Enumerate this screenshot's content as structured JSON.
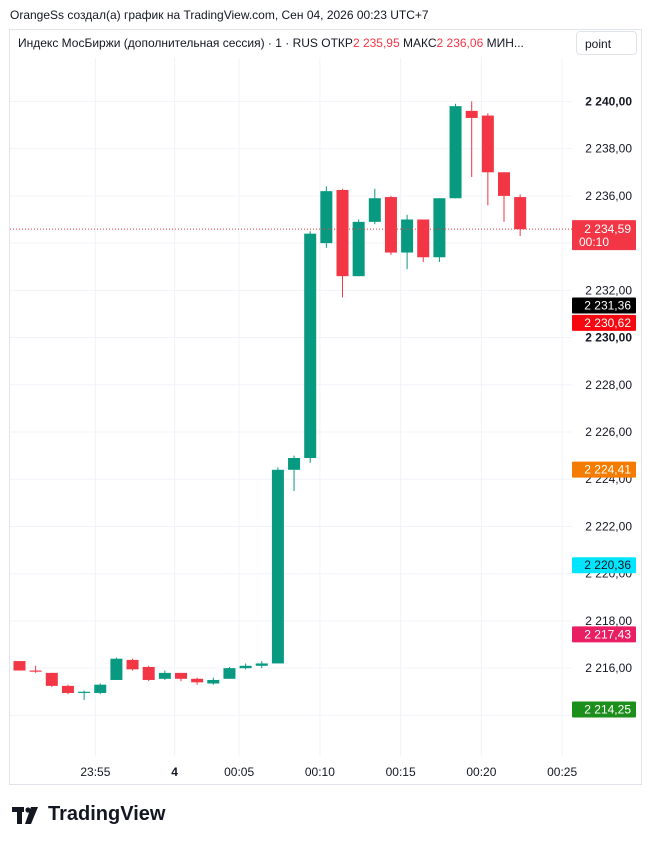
{
  "header": {
    "attribution": "OrangeSs создал(а) график на TradingView.com, Сен 04, 2026 00:23 UTC+7"
  },
  "legend": {
    "symbol": "Индекс МосБиржи (дополнительная сессия) · 1 · RUS",
    "open_label": "ОТКР",
    "open_value": "2 235,95",
    "high_label": "МАКС",
    "high_value": "2 236,06",
    "low_label": "МИН..."
  },
  "mode_button": "point",
  "brand": "TradingView",
  "colors": {
    "up": "#089981",
    "down": "#f23645",
    "grid": "#f0f3fa",
    "price_tag": "#f23645"
  },
  "chart_data": {
    "type": "candlestick",
    "x_tick_labels": [
      "23:55",
      "4",
      "00:05",
      "00:10",
      "00:15",
      "00:20",
      "00:25"
    ],
    "y_tick_labels": [
      "2 240,00",
      "2 238,00",
      "2 236,00",
      "2 232,00",
      "2 230,00",
      "2 228,00",
      "2 226,00",
      "2 224,00",
      "2 222,00",
      "2 220,00",
      "2 218,00",
      "2 216,00"
    ],
    "ylim": [
      2213.0,
      2241.5
    ],
    "current_price": {
      "value": 2234.59,
      "label": "2 234,59",
      "countdown": "00:10"
    },
    "price_tags": [
      {
        "label": "2 231,36",
        "value": 2231.36,
        "bg": "#000000",
        "fg": "#ffffff"
      },
      {
        "label": "2 230,62",
        "value": 2230.62,
        "bg": "#f7070f",
        "fg": "#ffffff"
      },
      {
        "label": "2 224,41",
        "value": 2224.41,
        "bg": "#f57c00",
        "fg": "#ffffff"
      },
      {
        "label": "2 220,36",
        "value": 2220.36,
        "bg": "#00e5ff",
        "fg": "#131722"
      },
      {
        "label": "2 217,43",
        "value": 2217.43,
        "bg": "#e91e63",
        "fg": "#ffffff"
      },
      {
        "label": "2 214,25",
        "value": 2214.25,
        "bg": "#1b8e1b",
        "fg": "#ffffff"
      }
    ],
    "candles": [
      {
        "time": "23:51",
        "open": 2216.3,
        "high": 2216.3,
        "low": 2215.9,
        "close": 2215.9
      },
      {
        "time": "23:52",
        "open": 2215.9,
        "high": 2216.1,
        "low": 2215.8,
        "close": 2215.85
      },
      {
        "time": "23:53",
        "open": 2215.8,
        "high": 2215.8,
        "low": 2215.2,
        "close": 2215.25
      },
      {
        "time": "23:54",
        "open": 2215.25,
        "high": 2215.3,
        "low": 2214.9,
        "close": 2214.95
      },
      {
        "time": "23:55",
        "open": 2214.95,
        "high": 2215.05,
        "low": 2214.65,
        "close": 2215.0
      },
      {
        "time": "23:56",
        "open": 2214.95,
        "high": 2215.35,
        "low": 2214.9,
        "close": 2215.3
      },
      {
        "time": "23:57",
        "open": 2215.5,
        "high": 2216.45,
        "low": 2215.5,
        "close": 2216.4
      },
      {
        "time": "23:58",
        "open": 2216.35,
        "high": 2216.4,
        "low": 2215.9,
        "close": 2215.95
      },
      {
        "time": "23:59",
        "open": 2216.05,
        "high": 2216.1,
        "low": 2215.45,
        "close": 2215.5
      },
      {
        "time": "00:00",
        "open": 2215.55,
        "high": 2215.9,
        "low": 2215.5,
        "close": 2215.8
      },
      {
        "time": "00:01",
        "open": 2215.8,
        "high": 2215.8,
        "low": 2215.45,
        "close": 2215.55
      },
      {
        "time": "00:02",
        "open": 2215.55,
        "high": 2215.6,
        "low": 2215.3,
        "close": 2215.4
      },
      {
        "time": "00:03",
        "open": 2215.35,
        "high": 2215.6,
        "low": 2215.3,
        "close": 2215.5
      },
      {
        "time": "00:04",
        "open": 2215.55,
        "high": 2216.05,
        "low": 2215.55,
        "close": 2216.0
      },
      {
        "time": "00:05",
        "open": 2216.0,
        "high": 2216.2,
        "low": 2215.95,
        "close": 2216.1
      },
      {
        "time": "00:06",
        "open": 2216.1,
        "high": 2216.3,
        "low": 2216.0,
        "close": 2216.2
      },
      {
        "time": "00:07",
        "open": 2216.2,
        "high": 2224.5,
        "low": 2216.2,
        "close": 2224.4
      },
      {
        "time": "00:08",
        "open": 2224.4,
        "high": 2225.0,
        "low": 2223.5,
        "close": 2224.9
      },
      {
        "time": "00:09",
        "open": 2224.9,
        "high": 2234.5,
        "low": 2224.7,
        "close": 2234.4
      },
      {
        "time": "00:10",
        "open": 2234.0,
        "high": 2236.4,
        "low": 2233.8,
        "close": 2236.2
      },
      {
        "time": "00:11",
        "open": 2236.25,
        "high": 2236.3,
        "low": 2231.7,
        "close": 2232.6
      },
      {
        "time": "00:12",
        "open": 2232.6,
        "high": 2235.0,
        "low": 2232.6,
        "close": 2234.9
      },
      {
        "time": "00:13",
        "open": 2234.9,
        "high": 2236.3,
        "low": 2234.8,
        "close": 2235.9
      },
      {
        "time": "00:14",
        "open": 2235.95,
        "high": 2236.0,
        "low": 2233.5,
        "close": 2233.6
      },
      {
        "time": "00:15",
        "open": 2233.6,
        "high": 2235.2,
        "low": 2232.9,
        "close": 2235.0
      },
      {
        "time": "00:16",
        "open": 2235.0,
        "high": 2235.0,
        "low": 2233.2,
        "close": 2233.4
      },
      {
        "time": "00:17",
        "open": 2233.4,
        "high": 2235.9,
        "low": 2233.2,
        "close": 2235.9
      },
      {
        "time": "00:18",
        "open": 2235.9,
        "high": 2239.9,
        "low": 2235.9,
        "close": 2239.8
      },
      {
        "time": "00:19",
        "open": 2239.6,
        "high": 2240.0,
        "low": 2236.8,
        "close": 2239.3
      },
      {
        "time": "00:20",
        "open": 2239.4,
        "high": 2239.5,
        "low": 2235.6,
        "close": 2237.0
      },
      {
        "time": "00:21",
        "open": 2237.0,
        "high": 2237.0,
        "low": 2234.9,
        "close": 2236.0
      },
      {
        "time": "00:22",
        "open": 2235.95,
        "high": 2236.06,
        "low": 2234.3,
        "close": 2234.59
      }
    ]
  }
}
